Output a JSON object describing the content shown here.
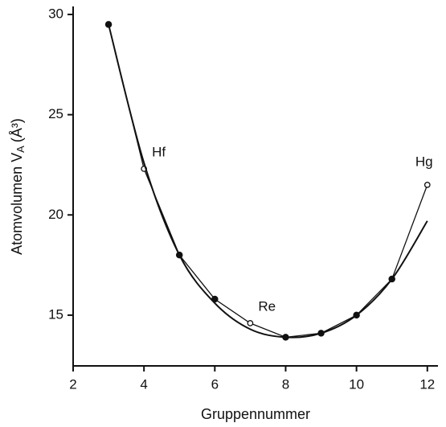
{
  "chart_data": {
    "type": "line",
    "xlabel": "Gruppennummer",
    "ylabel": "Atomvolumen V",
    "ylabel_sub": "A",
    "ylabel_unit": "(Å³)",
    "x": [
      3,
      4,
      5,
      6,
      7,
      8,
      9,
      10,
      11,
      12
    ],
    "series": [
      {
        "color": "#111111",
        "values": [
          29.5,
          22.3,
          18.0,
          15.8,
          14.6,
          13.9,
          14.1,
          15.0,
          16.8,
          21.5
        ],
        "point_labels": [
          null,
          "Hf",
          null,
          null,
          "Re",
          null,
          null,
          null,
          null,
          "Hg"
        ],
        "open_markers": [
          false,
          true,
          false,
          false,
          true,
          false,
          false,
          false,
          false,
          true
        ]
      },
      {
        "color": "#111111",
        "smooth": true,
        "values": [
          29.5,
          22.6,
          18.0,
          15.6,
          14.3,
          13.9,
          14.1,
          15.0,
          16.8,
          19.7
        ]
      }
    ],
    "xlim": [
      2,
      12.3
    ],
    "ylim": [
      12.47,
      30.4
    ],
    "xticks": [
      2,
      4,
      6,
      8,
      10,
      12
    ],
    "yticks": [
      15,
      20,
      25,
      30
    ]
  }
}
